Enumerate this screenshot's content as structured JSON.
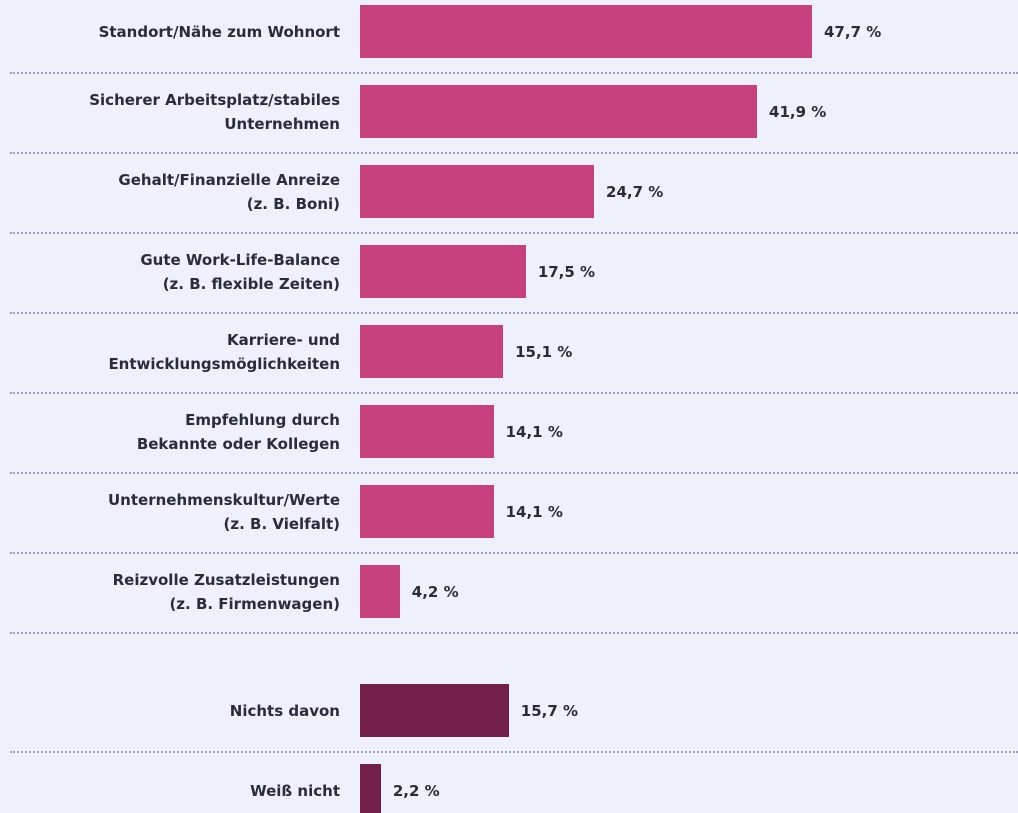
{
  "chart_data": {
    "type": "bar",
    "orientation": "horizontal",
    "categories": [
      "Standort/Nähe zum Wohnort",
      "Sicherer Arbeitsplatz/stabiles\nUnternehmen",
      "Gehalt/Finanzielle Anreize\n(z. B. Boni)",
      "Gute Work-Life-Balance\n(z. B. flexible Zeiten)",
      "Karriere- und\nEntwicklungsmöglichkeiten",
      "Empfehlung durch\nBekannte oder Kollegen",
      "Unternehmenskultur/Werte\n(z. B. Vielfalt)",
      "Reizvolle Zusatzleistungen\n(z. B. Firmenwagen)",
      "Nichts davon",
      "Weiß nicht"
    ],
    "values": [
      47.7,
      41.9,
      24.7,
      17.5,
      15.1,
      14.1,
      14.1,
      4.2,
      15.7,
      2.2
    ],
    "value_labels": [
      "47,7 %",
      "41,9 %",
      "24,7 %",
      "17,5 %",
      "15,1 %",
      "14,1 %",
      "14,1 %",
      "4,2 %",
      "15,7 %",
      "2,2 %"
    ],
    "colors": [
      "#c8417f",
      "#c8417f",
      "#c8417f",
      "#c8417f",
      "#c8417f",
      "#c8417f",
      "#c8417f",
      "#c8417f",
      "#722049",
      "#722049"
    ]
  }
}
